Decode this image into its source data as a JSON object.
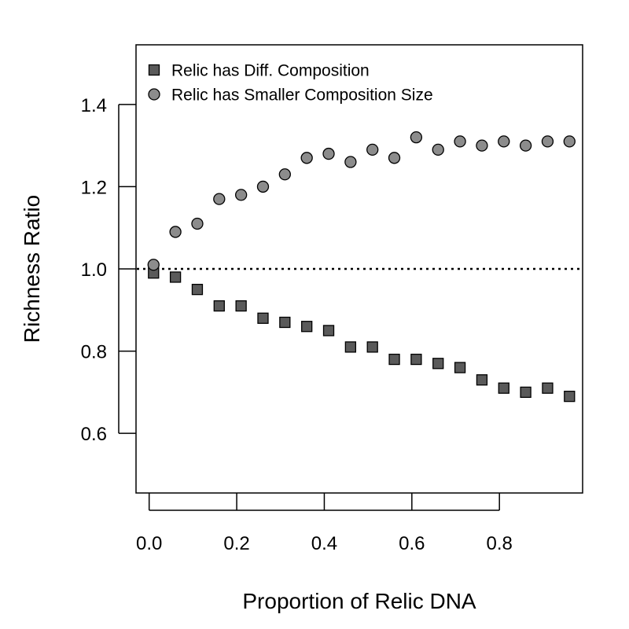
{
  "chart_data": {
    "type": "scatter",
    "title": "",
    "xlabel": "Proportion of Relic DNA",
    "ylabel": "Richness Ratio",
    "xlim": [
      -0.03,
      0.99
    ],
    "ylim": [
      0.455,
      1.545
    ],
    "x_ticks": [
      0.0,
      0.2,
      0.4,
      0.6,
      0.8
    ],
    "x_tick_labels": [
      "0.0",
      "0.2",
      "0.4",
      "0.6",
      "0.8"
    ],
    "y_ticks": [
      0.6,
      0.8,
      1.0,
      1.2,
      1.4
    ],
    "y_tick_labels": [
      "0.6",
      "0.8",
      "1.0",
      "1.2",
      "1.4"
    ],
    "reference_line": {
      "y": 1.0,
      "style": "dotted"
    },
    "grid": false,
    "legend_position": "top-left",
    "x": [
      0.01,
      0.06,
      0.11,
      0.16,
      0.21,
      0.26,
      0.31,
      0.36,
      0.41,
      0.46,
      0.51,
      0.56,
      0.61,
      0.66,
      0.71,
      0.76,
      0.81,
      0.86,
      0.91,
      0.96
    ],
    "series": [
      {
        "name": "Relic has Diff. Composition",
        "marker": "square",
        "color": "#5a5a5a",
        "values": [
          0.99,
          0.98,
          0.95,
          0.91,
          0.91,
          0.88,
          0.87,
          0.86,
          0.85,
          0.81,
          0.81,
          0.78,
          0.78,
          0.77,
          0.76,
          0.73,
          0.71,
          0.7,
          0.71,
          0.69
        ]
      },
      {
        "name": "Relic has Smaller Composition Size",
        "marker": "circle",
        "color": "#8c8c8c",
        "values": [
          1.01,
          1.09,
          1.11,
          1.17,
          1.18,
          1.2,
          1.23,
          1.27,
          1.28,
          1.26,
          1.29,
          1.27,
          1.32,
          1.29,
          1.31,
          1.3,
          1.31,
          1.3,
          1.31,
          1.31
        ]
      }
    ]
  }
}
